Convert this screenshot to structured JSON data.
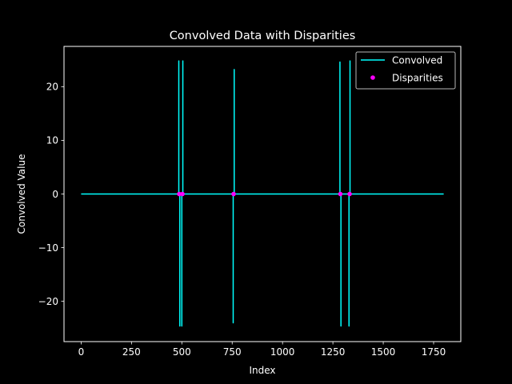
{
  "chart_data": {
    "type": "line",
    "title": "Convolved Data with Disparities",
    "xlabel": "Index",
    "ylabel": "Convolved Value",
    "xlim": [
      -85,
      1885
    ],
    "ylim": [
      -27.5,
      27.5
    ],
    "xticks": [
      0,
      250,
      500,
      750,
      1000,
      1250,
      1500,
      1750
    ],
    "yticks": [
      -20,
      -10,
      0,
      10,
      20
    ],
    "xtick_labels": [
      "0",
      "250",
      "500",
      "750",
      "1000",
      "1250",
      "1500",
      "1750"
    ],
    "ytick_labels": [
      "−20",
      "−10",
      "0",
      "10",
      "20"
    ],
    "grid": false,
    "legend_position": "top-right",
    "series": [
      {
        "name": "Convolved",
        "kind": "line",
        "color": "#00ffff",
        "x": [
          0,
          485,
          485,
          485,
          490,
          490,
          490,
          500,
          500,
          500,
          505,
          505,
          505,
          755,
          755,
          755,
          760,
          760,
          760,
          1285,
          1285,
          1285,
          1290,
          1290,
          1290,
          1330,
          1330,
          1330,
          1335,
          1335,
          1335,
          1800
        ],
        "y": [
          0,
          0,
          24.8,
          0,
          0,
          -24.6,
          0,
          0,
          -24.6,
          0,
          0,
          24.8,
          0,
          0,
          -24.0,
          0,
          0,
          23.2,
          0,
          0,
          24.6,
          0,
          0,
          -24.6,
          0,
          0,
          -24.6,
          0,
          0,
          24.8,
          0,
          0
        ]
      },
      {
        "name": "Disparities",
        "kind": "scatter",
        "color": "#ff00ff",
        "x": [
          487,
          503,
          757,
          1287,
          1333
        ],
        "y": [
          0,
          0,
          0,
          0,
          0
        ]
      }
    ]
  }
}
